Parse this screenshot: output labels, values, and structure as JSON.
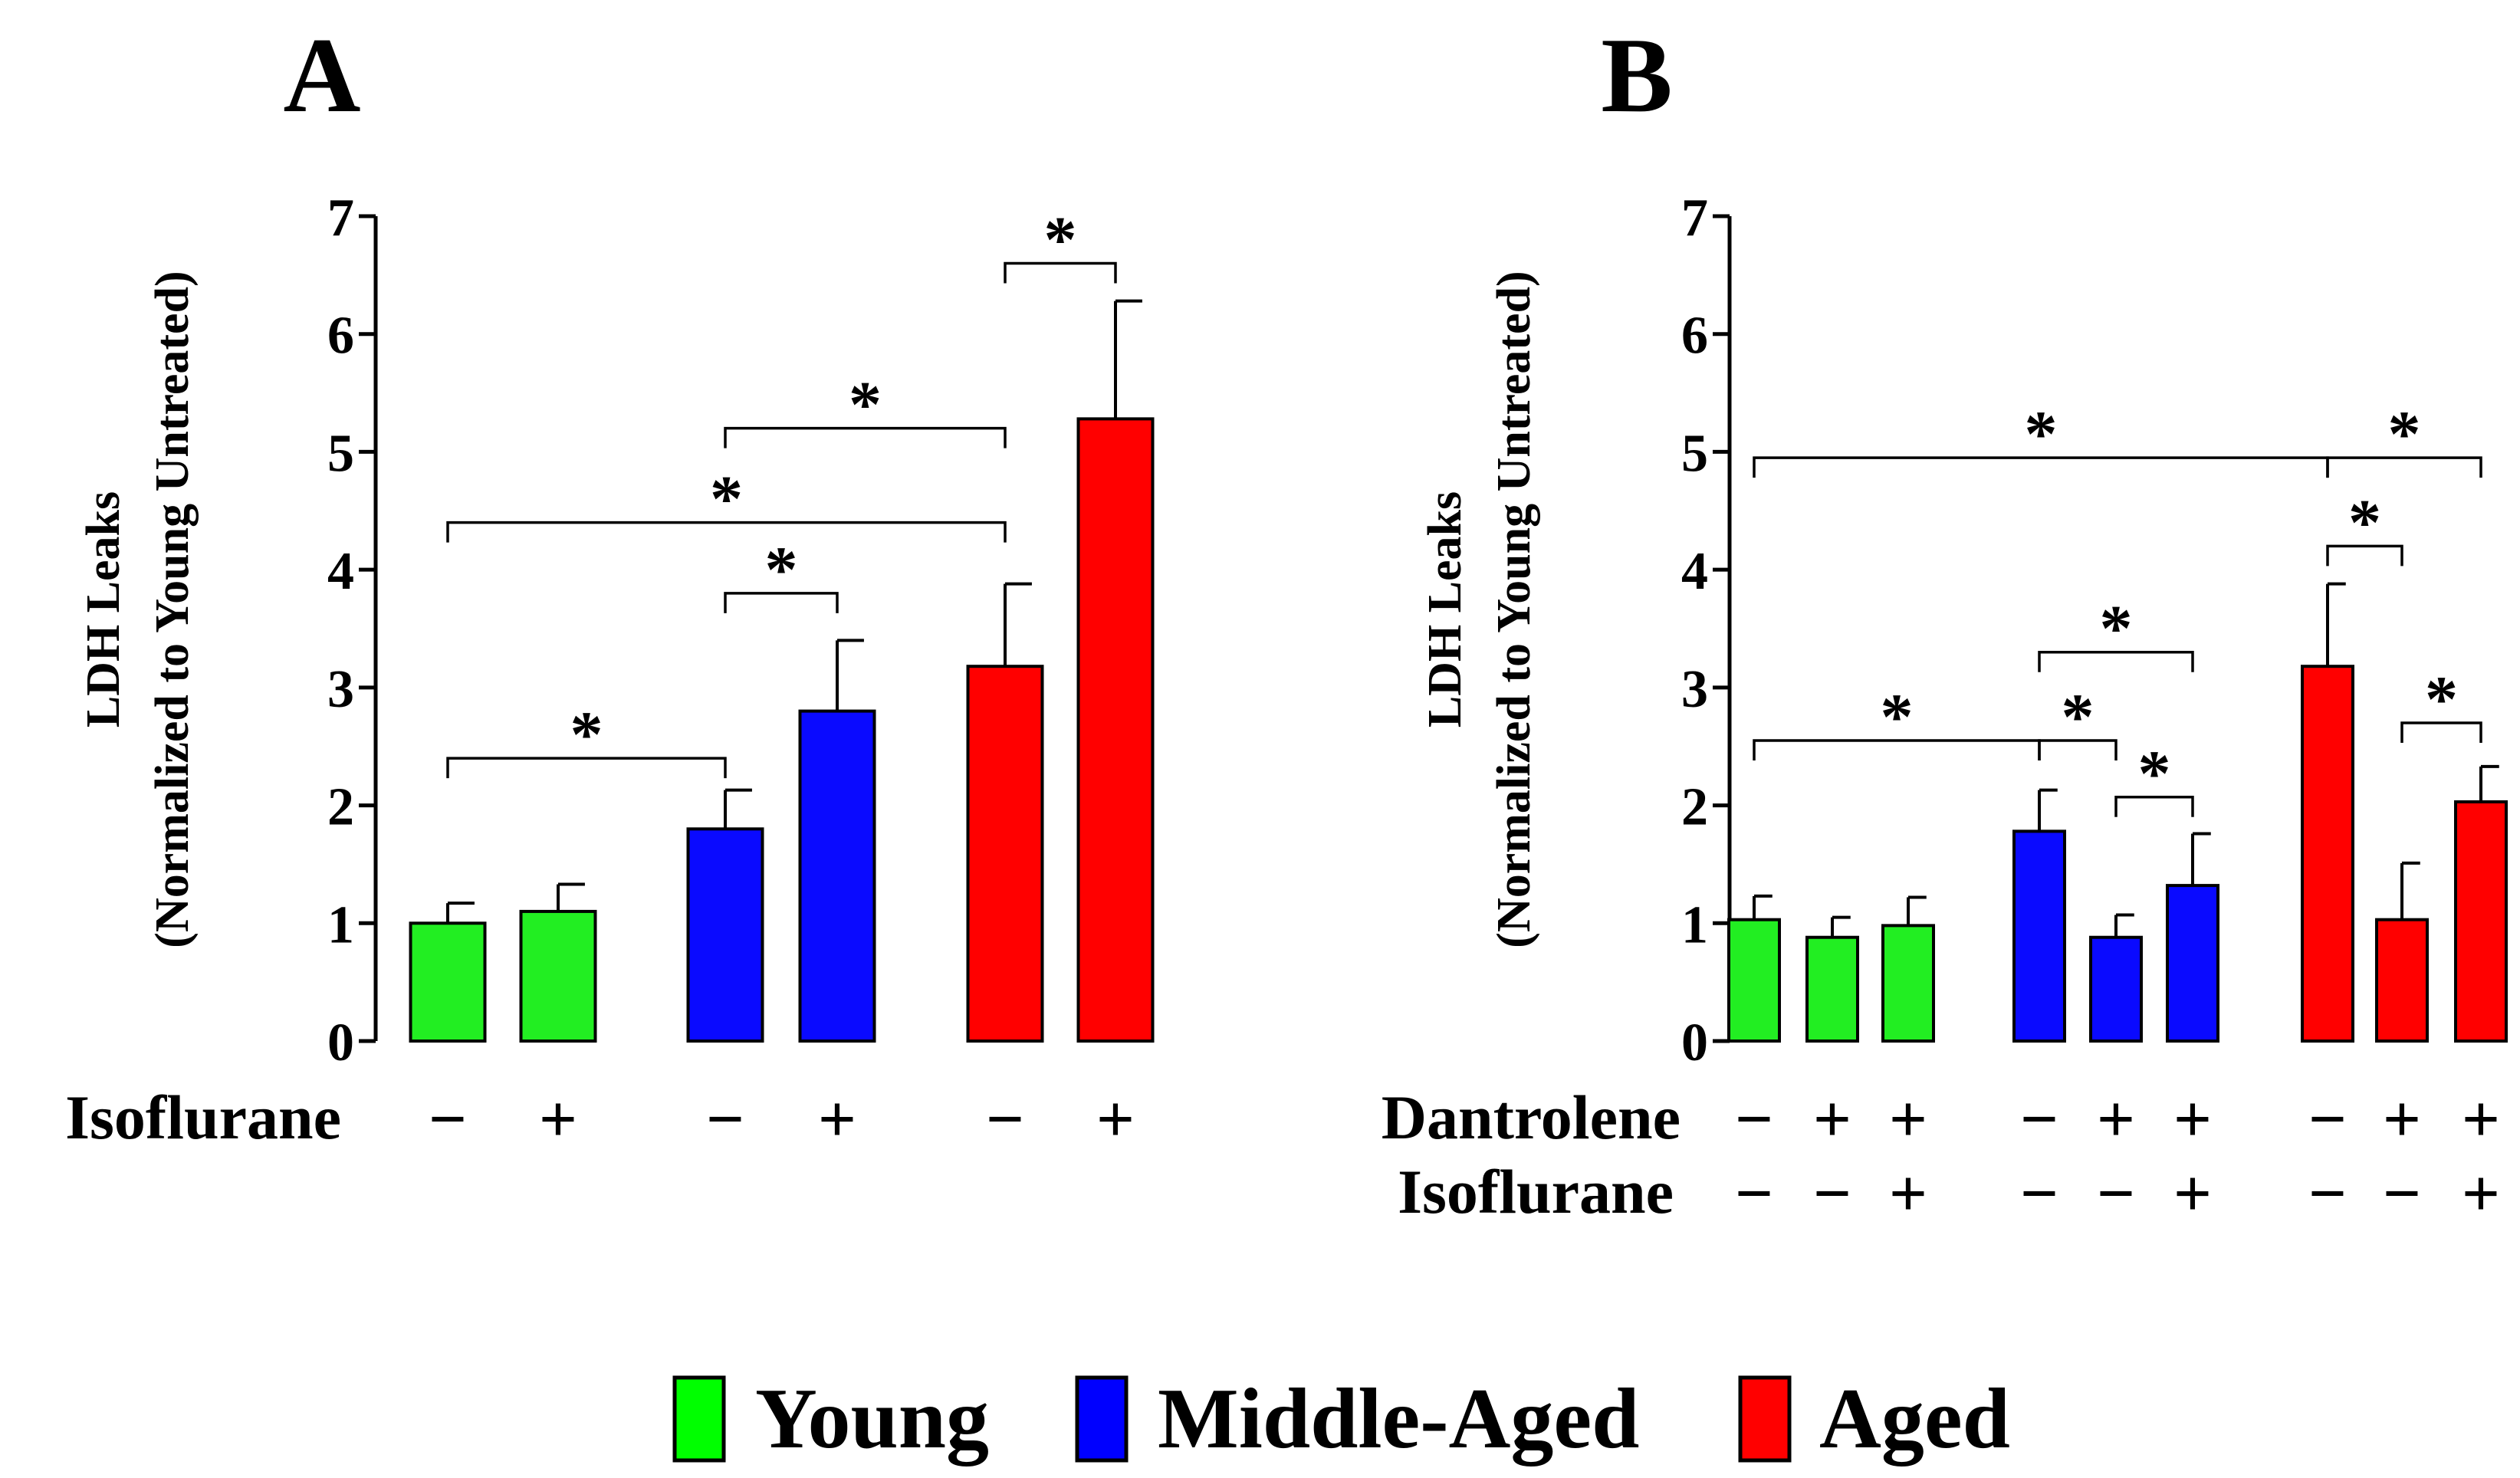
{
  "chart_data": [
    {
      "type": "bar",
      "panel": "A",
      "ylabel": [
        "LDH Leaks",
        "(Normalized to Young Untreated)"
      ],
      "ylim": [
        0,
        7
      ],
      "yticks": [
        0,
        1,
        2,
        3,
        4,
        5,
        6,
        7
      ],
      "bars": [
        {
          "group": "Young",
          "value": 1.0,
          "error": 0.17
        },
        {
          "group": "Young",
          "value": 1.1,
          "error": 0.23
        },
        {
          "group": "Middle-Aged",
          "value": 1.8,
          "error": 0.33
        },
        {
          "group": "Middle-Aged",
          "value": 2.8,
          "error": 0.6
        },
        {
          "group": "Aged",
          "value": 3.18,
          "error": 0.7
        },
        {
          "group": "Aged",
          "value": 5.28,
          "error": 1.0
        }
      ],
      "condition_rows": [
        {
          "label": "Isoflurane",
          "signs": [
            "−",
            "+",
            "−",
            "+",
            "−",
            "+"
          ]
        }
      ],
      "significance": [
        {
          "from": 0,
          "to": 2,
          "level": 2.4,
          "label": "*"
        },
        {
          "from": 0,
          "to": 4,
          "level": 4.4,
          "label": "*"
        },
        {
          "from": 2,
          "to": 3,
          "level": 3.8,
          "label": "*"
        },
        {
          "from": 2,
          "to": 4,
          "level": 5.2,
          "label": "*"
        },
        {
          "from": 4,
          "to": 5,
          "level": 6.6,
          "label": "*"
        }
      ]
    },
    {
      "type": "bar",
      "panel": "B",
      "ylabel": [
        "LDH Leaks",
        "(Normalized to Young Untreated)"
      ],
      "ylim": [
        0,
        7
      ],
      "yticks": [
        0,
        1,
        2,
        3,
        4,
        5,
        6,
        7
      ],
      "bars": [
        {
          "group": "Young",
          "value": 1.03,
          "error": 0.2
        },
        {
          "group": "Young",
          "value": 0.88,
          "error": 0.17
        },
        {
          "group": "Young",
          "value": 0.98,
          "error": 0.24
        },
        {
          "group": "Middle-Aged",
          "value": 1.78,
          "error": 0.35
        },
        {
          "group": "Middle-Aged",
          "value": 0.88,
          "error": 0.19
        },
        {
          "group": "Middle-Aged",
          "value": 1.32,
          "error": 0.44
        },
        {
          "group": "Aged",
          "value": 3.18,
          "error": 0.7
        },
        {
          "group": "Aged",
          "value": 1.03,
          "error": 0.48
        },
        {
          "group": "Aged",
          "value": 2.03,
          "error": 0.3
        }
      ],
      "condition_rows": [
        {
          "label": "Dantrolene",
          "signs": [
            "−",
            "+",
            "+",
            "−",
            "+",
            "+",
            "−",
            "+",
            "+"
          ]
        },
        {
          "label": "Isoflurane",
          "signs": [
            "−",
            "−",
            "+",
            "−",
            "−",
            "+",
            "−",
            "−",
            "+"
          ]
        }
      ],
      "significance": [
        {
          "from": 0,
          "to": 3,
          "level": 2.55,
          "label": "*"
        },
        {
          "from": 0,
          "to": 6,
          "level": 4.95,
          "label": "*"
        },
        {
          "from": 3,
          "to": 4,
          "level": 2.55,
          "label": "*"
        },
        {
          "from": 3,
          "to": 5,
          "level": 3.3,
          "label": "*"
        },
        {
          "from": 4,
          "to": 5,
          "level": 2.07,
          "label": "*"
        },
        {
          "from": 6,
          "to": 7,
          "level": 4.2,
          "label": "*"
        },
        {
          "from": 6,
          "to": 8,
          "level": 4.95,
          "label": "*"
        },
        {
          "from": 7,
          "to": 8,
          "level": 2.7,
          "label": "*"
        }
      ]
    }
  ],
  "legend": [
    {
      "label": "Young",
      "color": "#00ff00"
    },
    {
      "label": "Middle-Aged",
      "color": "#0000ff"
    },
    {
      "label": "Aged",
      "color": "#ff0000"
    }
  ],
  "colors": {
    "Young": "#22ee22",
    "Middle-Aged": "#0a0aff",
    "Aged": "#ff0000"
  }
}
